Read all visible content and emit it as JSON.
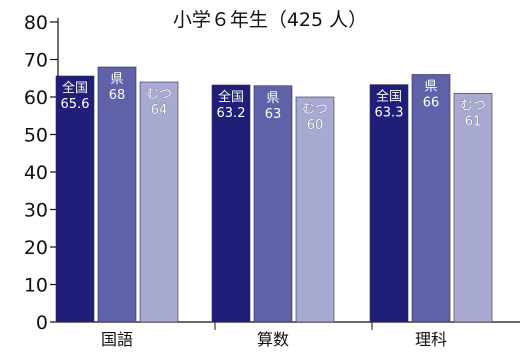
{
  "chart_data": {
    "type": "bar",
    "title": "小学６年生（425 人）",
    "categories": [
      "国語",
      "算数",
      "理科"
    ],
    "series": [
      {
        "name": "全国",
        "values": [
          65.6,
          63.2,
          63.3
        ],
        "labels": [
          "65.6",
          "63.2",
          "63.3"
        ],
        "color": "#1f1f7a"
      },
      {
        "name": "県",
        "values": [
          68,
          63,
          66
        ],
        "labels": [
          "68",
          "63",
          "66"
        ],
        "color": "#5f62a8"
      },
      {
        "name": "むつ",
        "values": [
          64,
          60,
          61
        ],
        "labels": [
          "64",
          "60",
          "61"
        ],
        "color": "#a8aad2"
      }
    ],
    "ylim": [
      0,
      80
    ],
    "yticks": [
      "0",
      "10",
      "20",
      "30",
      "40",
      "50",
      "60",
      "70",
      "80"
    ],
    "xlabel": "",
    "ylabel": "",
    "grid": false,
    "legend": "none"
  }
}
